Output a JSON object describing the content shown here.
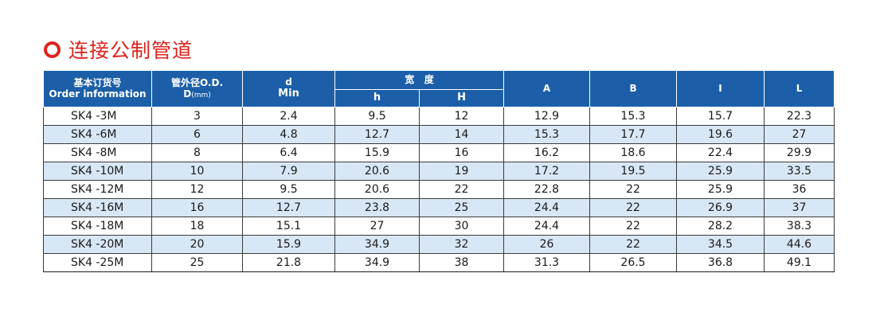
{
  "title": "连接公制管道",
  "colors": {
    "accent": "#e0231d",
    "header_bg": "#1c5fa8",
    "stripe": "#d8e7f6"
  },
  "headers": {
    "order_cn": "基本订货号",
    "order_en": "Order information",
    "od_cn": "管外径O.D.",
    "od_d": "D",
    "od_unit": "(mm)",
    "d_top": "d",
    "d_bottom": "Min",
    "width_group": "宽   度",
    "h_lower": "h",
    "h_upper": "H",
    "a": "A",
    "b": "B",
    "i": "I",
    "l": "L"
  },
  "rows": [
    {
      "order": "SK4 -3M",
      "od": "3",
      "d": "2.4",
      "h": "9.5",
      "H": "12",
      "A": "12.9",
      "B": "15.3",
      "I": "15.7",
      "L": "22.3"
    },
    {
      "order": "SK4 -6M",
      "od": "6",
      "d": "4.8",
      "h": "12.7",
      "H": "14",
      "A": "15.3",
      "B": "17.7",
      "I": "19.6",
      "L": "27"
    },
    {
      "order": "SK4 -8M",
      "od": "8",
      "d": "6.4",
      "h": "15.9",
      "H": "16",
      "A": "16.2",
      "B": "18.6",
      "I": "22.4",
      "L": "29.9"
    },
    {
      "order": "SK4 -10M",
      "od": "10",
      "d": "7.9",
      "h": "20.6",
      "H": "19",
      "A": "17.2",
      "B": "19.5",
      "I": "25.9",
      "L": "33.5"
    },
    {
      "order": "SK4 -12M",
      "od": "12",
      "d": "9.5",
      "h": "20.6",
      "H": "22",
      "A": "22.8",
      "B": "22",
      "I": "25.9",
      "L": "36"
    },
    {
      "order": "SK4 -16M",
      "od": "16",
      "d": "12.7",
      "h": "23.8",
      "H": "25",
      "A": "24.4",
      "B": "22",
      "I": "26.9",
      "L": "37"
    },
    {
      "order": "SK4 -18M",
      "od": "18",
      "d": "15.1",
      "h": "27",
      "H": "30",
      "A": "24.4",
      "B": "22",
      "I": "28.2",
      "L": "38.3"
    },
    {
      "order": "SK4 -20M",
      "od": "20",
      "d": "15.9",
      "h": "34.9",
      "H": "32",
      "A": "26",
      "B": "22",
      "I": "34.5",
      "L": "44.6"
    },
    {
      "order": "SK4 -25M",
      "od": "25",
      "d": "21.8",
      "h": "34.9",
      "H": "38",
      "A": "31.3",
      "B": "26.5",
      "I": "36.8",
      "L": "49.1"
    }
  ]
}
